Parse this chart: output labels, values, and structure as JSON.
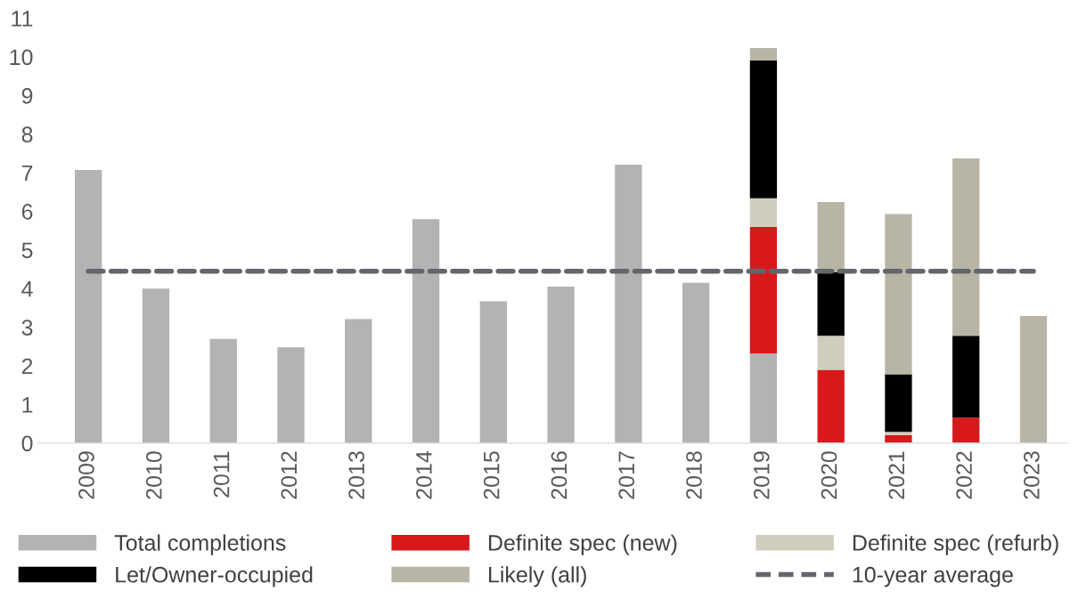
{
  "chart_data": {
    "type": "bar",
    "stacked": true,
    "categories": [
      "2009",
      "2010",
      "2011",
      "2012",
      "2013",
      "2014",
      "2015",
      "2016",
      "2017",
      "2018",
      "2019",
      "2020",
      "2021",
      "2022",
      "2023"
    ],
    "series": [
      {
        "name": "Total completions",
        "color": "#b3b3b3",
        "values": [
          7.07,
          4.0,
          2.7,
          2.48,
          3.21,
          5.8,
          3.67,
          4.05,
          7.21,
          4.15,
          2.32,
          null,
          null,
          null,
          null
        ]
      },
      {
        "name": "Definite spec (new)",
        "color": "#d7191c",
        "values": [
          null,
          null,
          null,
          null,
          null,
          null,
          null,
          null,
          null,
          null,
          3.28,
          1.9,
          0.21,
          0.66,
          null
        ]
      },
      {
        "name": "Definite spec (refurb)",
        "color": "#d0cdbd",
        "values": [
          null,
          null,
          null,
          null,
          null,
          null,
          null,
          null,
          null,
          null,
          0.74,
          0.88,
          0.08,
          null,
          null
        ]
      },
      {
        "name": "Let/Owner-occupied",
        "color": "#000000",
        "values": [
          null,
          null,
          null,
          null,
          null,
          null,
          null,
          null,
          null,
          null,
          3.57,
          1.64,
          1.49,
          2.12,
          null
        ]
      },
      {
        "name": "Likely (all)",
        "color": "#b9b5a6",
        "values": [
          null,
          null,
          null,
          null,
          null,
          null,
          null,
          null,
          null,
          null,
          0.32,
          1.82,
          4.15,
          4.59,
          3.29
        ]
      }
    ],
    "ref_lines": [
      {
        "axis": "y",
        "value": 4.45,
        "label": "10-year average",
        "color": "#63666a",
        "line_style": "dashed"
      }
    ],
    "ylim": [
      0,
      11
    ],
    "yticks": [
      0,
      1,
      2,
      3,
      4,
      5,
      6,
      7,
      8,
      9,
      10,
      11
    ],
    "legend": "bottom",
    "grid": false
  }
}
